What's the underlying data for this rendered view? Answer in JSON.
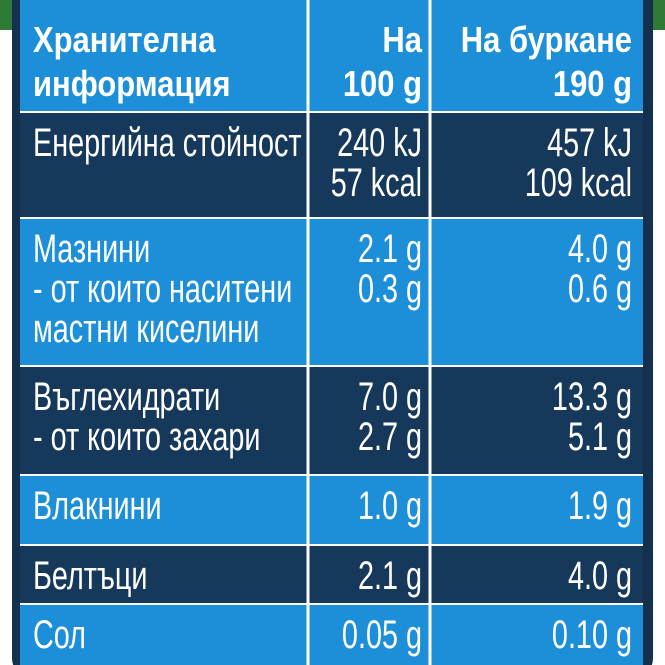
{
  "header": {
    "title": [
      "Хранителна",
      "информация"
    ],
    "col1": [
      "На",
      "100 g"
    ],
    "col2": [
      "На буркане",
      "190 g"
    ]
  },
  "rows": [
    {
      "label": [
        "Енергийна стойност"
      ],
      "col1": [
        "240 kJ",
        "57 kcal"
      ],
      "col2": [
        "457 kJ",
        "109 kcal"
      ]
    },
    {
      "label": [
        "Мазнини",
        " - от които наситени",
        "мастни киселини"
      ],
      "col1": [
        "2.1 g",
        "0.3 g"
      ],
      "col2": [
        "4.0 g",
        "0.6 g"
      ]
    },
    {
      "label": [
        "Въглехидрати",
        "- от които захари"
      ],
      "col1": [
        "7.0 g",
        "2.7 g"
      ],
      "col2": [
        "13.3 g",
        "5.1 g"
      ]
    },
    {
      "label": [
        "Влакнини"
      ],
      "col1": [
        "1.0 g"
      ],
      "col2": [
        "1.9 g"
      ]
    },
    {
      "label": [
        "Белтъци"
      ],
      "col1": [
        "2.1 g"
      ],
      "col2": [
        "4.0 g"
      ]
    },
    {
      "label": [
        "Сол"
      ],
      "col1": [
        "0.05 g"
      ],
      "col2": [
        "0.10 g"
      ]
    }
  ]
}
